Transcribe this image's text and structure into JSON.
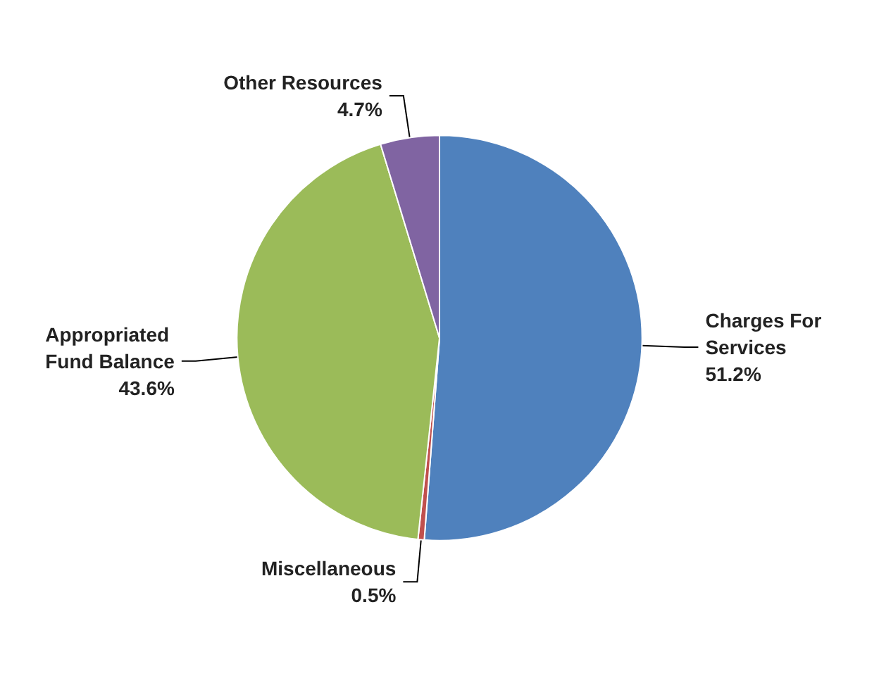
{
  "chart_data": {
    "type": "pie",
    "categories": [
      "Charges For Services",
      "Miscellaneous",
      "Appropriated Fund Balance",
      "Other Resources"
    ],
    "values": [
      51.2,
      0.5,
      43.6,
      4.7
    ],
    "colors": [
      "#4f81bd",
      "#c0504d",
      "#9bbb59",
      "#8064a2"
    ],
    "value_labels": [
      "51.2%",
      "0.5%",
      "43.6%",
      "4.7%"
    ],
    "legend": false
  }
}
